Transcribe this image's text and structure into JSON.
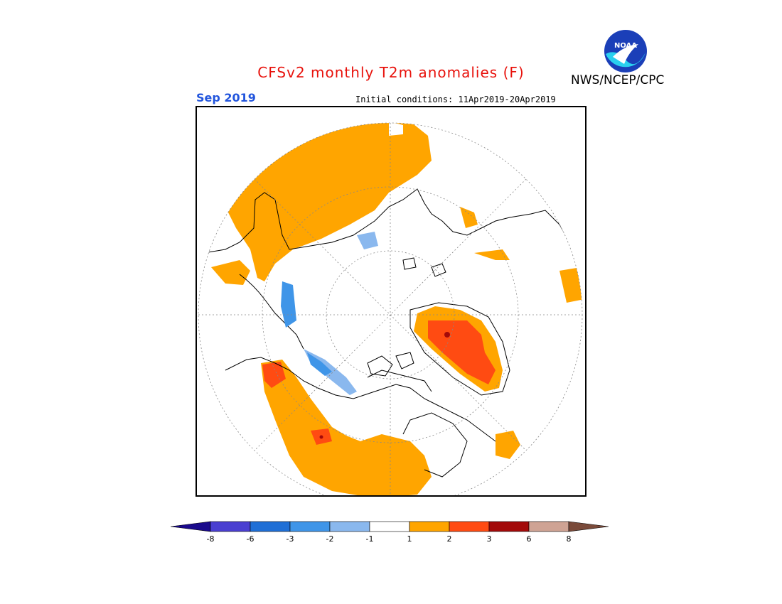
{
  "header": {
    "title": "CFSv2 monthly T2m anomalies (F)",
    "month": "Sep 2019",
    "initial_conditions": "Initial conditions: 11Apr2019-20Apr2019",
    "agency": "NWS/NCEP/CPC",
    "logo_text": "NOAA"
  },
  "colorbar": {
    "ticks": [
      "-8",
      "-6",
      "-3",
      "-2",
      "-1",
      "1",
      "2",
      "3",
      "6",
      "8"
    ],
    "colors": [
      "#1a0a8c",
      "#4a3fd1",
      "#1f6fd6",
      "#3f95e8",
      "#8ab8ee",
      "#ffffff",
      "#ffa500",
      "#ff4b12",
      "#a30a0a",
      "#cfa394",
      "#7a4a3a"
    ]
  },
  "legend_colors": {
    "land_outline": "#000000",
    "warm_1": "#ffa500",
    "warm_2": "#ff4b12",
    "warm_3": "#a30a0a",
    "cool_1": "#8ab8ee",
    "cool_2": "#3f95e8"
  }
}
